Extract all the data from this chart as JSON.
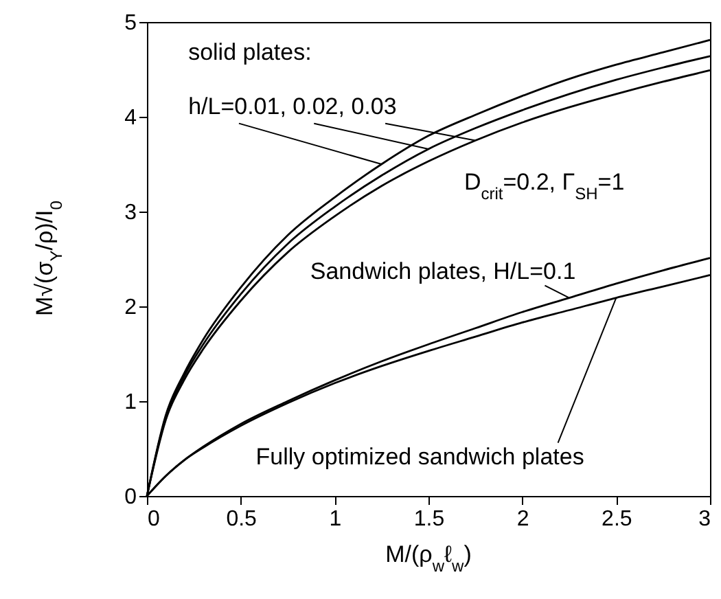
{
  "chart_data": {
    "type": "line",
    "xlabel": "M/(ρ$_{w}$ℓ$_{w}$)",
    "ylabel": "M√(σ$_{Y}$/ρ)/I$_{0}$",
    "x": [
      0,
      0.1,
      0.2,
      0.3,
      0.5,
      0.75,
      1,
      1.25,
      1.5,
      1.75,
      2,
      2.25,
      2.5,
      2.75,
      3
    ],
    "series": [
      {
        "color": "#000000",
        "values": [
          0,
          0.85,
          1.3,
          1.65,
          2.2,
          2.75,
          3.15,
          3.5,
          3.8,
          4.02,
          4.22,
          4.4,
          4.55,
          4.68,
          4.81
        ]
      },
      {
        "color": "#000000",
        "values": [
          0,
          0.83,
          1.27,
          1.6,
          2.13,
          2.66,
          3.05,
          3.38,
          3.66,
          3.88,
          4.07,
          4.24,
          4.39,
          4.52,
          4.64
        ]
      },
      {
        "color": "#000000",
        "values": [
          0,
          0.8,
          1.23,
          1.55,
          2.06,
          2.57,
          2.95,
          3.27,
          3.53,
          3.75,
          3.94,
          4.1,
          4.24,
          4.37,
          4.49
        ]
      },
      {
        "color": "#000000",
        "values": [
          0,
          0.21,
          0.38,
          0.52,
          0.76,
          1.0,
          1.22,
          1.42,
          1.6,
          1.77,
          1.94,
          2.09,
          2.24,
          2.38,
          2.51
        ]
      },
      {
        "color": "#000000",
        "values": [
          0,
          0.21,
          0.38,
          0.51,
          0.74,
          0.98,
          1.19,
          1.37,
          1.53,
          1.68,
          1.83,
          1.96,
          2.09,
          2.21,
          2.33
        ]
      }
    ],
    "annotations": [
      "solid plates:",
      {
        "text": "h/L=0.01, 0.02, 0.03",
        "x": 1.5,
        "y": 3.66
      },
      "D$_{crit}$=0.2,  Γ$_{SH}$=1",
      {
        "text": "Sandwich plates, H/L=0.1",
        "x": 2.25,
        "y": 2.09
      },
      {
        "text": "Fully optimized sandwich plates",
        "x": 2.5,
        "y": 2.09
      }
    ],
    "xlim": [
      0,
      3
    ],
    "xticks": [
      0,
      0.5,
      1,
      1.5,
      2,
      2.5,
      3
    ],
    "ylim": [
      0,
      5
    ],
    "yticks": [
      0,
      1,
      2,
      3,
      4,
      5
    ],
    "grid": false,
    "marker": "none",
    "line_style": "solid"
  }
}
